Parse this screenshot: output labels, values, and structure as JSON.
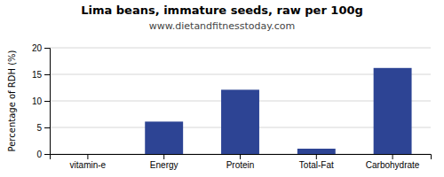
{
  "chart_data": {
    "type": "bar",
    "title": "Lima beans, immature seeds, raw per 100g",
    "subtitle": "www.dietandfitnesstoday.com",
    "categories": [
      "vitamin-e",
      "Energy",
      "Protein",
      "Total-Fat",
      "Carbohydrate"
    ],
    "values": [
      0.0,
      6.1,
      12.1,
      1.0,
      16.2
    ],
    "color": "#2d4494",
    "ylabel": "Percentage of RDH (%)",
    "ylim": [
      0,
      20
    ],
    "yticks": [
      0,
      5,
      10,
      15,
      20
    ],
    "grid": true
  }
}
